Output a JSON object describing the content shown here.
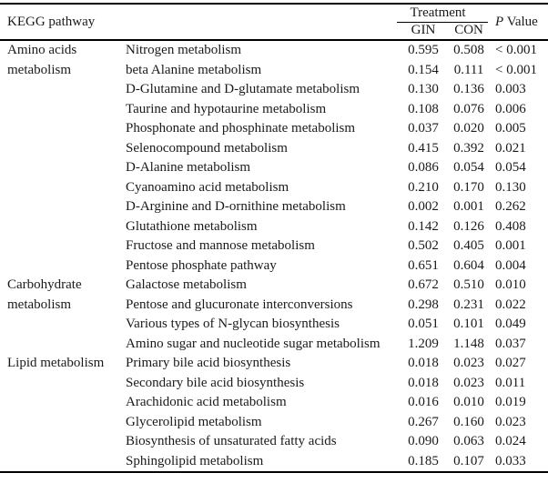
{
  "colors": {
    "text": "#1a1a1a",
    "rule": "#000000",
    "background": "#ffffff"
  },
  "table": {
    "header": {
      "kegg_pathway_label": "KEGG pathway",
      "treatment_label": "Treatment",
      "gin_label": "GIN",
      "con_label": "CON",
      "p_italic": "P",
      "p_rest": "Value"
    },
    "groups": [
      {
        "category": "Amino acids metabolism",
        "rows": [
          {
            "pathway": "Nitrogen metabolism",
            "gin": "0.595",
            "con": "0.508",
            "p": "< 0.001"
          },
          {
            "pathway": "beta Alanine metabolism",
            "gin": "0.154",
            "con": "0.111",
            "p": "< 0.001"
          },
          {
            "pathway": "D-Glutamine and D-glutamate metabolism",
            "gin": "0.130",
            "con": "0.136",
            "p": "0.003"
          },
          {
            "pathway": "Taurine and hypotaurine metabolism",
            "gin": "0.108",
            "con": "0.076",
            "p": "0.006"
          },
          {
            "pathway": "Phosphonate and phosphinate metabolism",
            "gin": "0.037",
            "con": "0.020",
            "p": "0.005"
          },
          {
            "pathway": "Selenocompound metabolism",
            "gin": "0.415",
            "con": "0.392",
            "p": "0.021"
          },
          {
            "pathway": "D-Alanine metabolism",
            "gin": "0.086",
            "con": "0.054",
            "p": "0.054"
          },
          {
            "pathway": "Cyanoamino acid metabolism",
            "gin": "0.210",
            "con": "0.170",
            "p": "0.130"
          },
          {
            "pathway": "D-Arginine and D-ornithine metabolism",
            "gin": "0.002",
            "con": "0.001",
            "p": "0.262"
          },
          {
            "pathway": "Glutathione metabolism",
            "gin": "0.142",
            "con": "0.126",
            "p": "0.408"
          },
          {
            "pathway": "Fructose and mannose metabolism",
            "gin": "0.502",
            "con": "0.405",
            "p": "0.001"
          },
          {
            "pathway": "Pentose phosphate pathway",
            "gin": "0.651",
            "con": "0.604",
            "p": "0.004"
          }
        ]
      },
      {
        "category": "Carbohydrate metabolism",
        "rows": [
          {
            "pathway": "Galactose metabolism",
            "gin": "0.672",
            "con": "0.510",
            "p": "0.010"
          },
          {
            "pathway": "Pentose and glucuronate interconversions",
            "gin": "0.298",
            "con": "0.231",
            "p": "0.022"
          },
          {
            "pathway": "Various types of N-glycan biosynthesis",
            "gin": "0.051",
            "con": "0.101",
            "p": "0.049"
          },
          {
            "pathway": "Amino sugar and nucleotide sugar metabolism",
            "gin": "1.209",
            "con": "1.148",
            "p": "0.037"
          }
        ]
      },
      {
        "category": "Lipid metabolism",
        "rows": [
          {
            "pathway": "Primary bile acid biosynthesis",
            "gin": "0.018",
            "con": "0.023",
            "p": "0.027"
          },
          {
            "pathway": "Secondary bile acid biosynthesis",
            "gin": "0.018",
            "con": "0.023",
            "p": "0.011"
          },
          {
            "pathway": "Arachidonic acid metabolism",
            "gin": "0.016",
            "con": "0.010",
            "p": "0.019"
          },
          {
            "pathway": "Glycerolipid metabolism",
            "gin": "0.267",
            "con": "0.160",
            "p": "0.023"
          },
          {
            "pathway": "Biosynthesis of unsaturated fatty acids",
            "gin": "0.090",
            "con": "0.063",
            "p": "0.024"
          },
          {
            "pathway": "Sphingolipid metabolism",
            "gin": "0.185",
            "con": "0.107",
            "p": "0.033"
          }
        ]
      }
    ]
  }
}
